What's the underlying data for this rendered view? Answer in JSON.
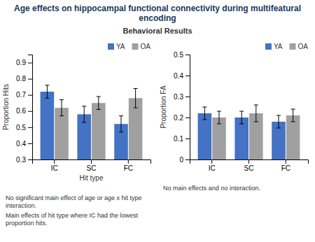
{
  "title": "Age effects on hippocampal functional connectivity during multifeatural encoding",
  "subtitle": "Behavioral Results",
  "chart_data": [
    {
      "type": "bar",
      "categories": [
        "IC",
        "SC",
        "FC"
      ],
      "series": [
        {
          "name": "YA",
          "color": "#4472c4",
          "values": [
            0.72,
            0.58,
            0.52
          ],
          "errors": [
            0.04,
            0.05,
            0.05
          ]
        },
        {
          "name": "OA",
          "color": "#a0a0a0",
          "values": [
            0.62,
            0.65,
            0.68
          ],
          "errors": [
            0.05,
            0.04,
            0.06
          ]
        }
      ],
      "xlabel": "Hit type",
      "ylabel": "Proportion Hits",
      "ylim": [
        0.3,
        0.95
      ],
      "yticks": [
        0.3,
        0.4,
        0.5,
        0.6,
        0.7,
        0.8,
        0.9
      ],
      "legend": "upper right",
      "annotations": [
        "No significant main effect of age or age x hit type interaction.",
        "Main effects of hit type where IC had the lowest proportion hits."
      ]
    },
    {
      "type": "bar",
      "categories": [
        "IC",
        "SC",
        "FC"
      ],
      "series": [
        {
          "name": "YA",
          "color": "#4472c4",
          "values": [
            0.22,
            0.2,
            0.18
          ],
          "errors": [
            0.03,
            0.03,
            0.03
          ]
        },
        {
          "name": "OA",
          "color": "#a0a0a0",
          "values": [
            0.2,
            0.22,
            0.21
          ],
          "errors": [
            0.03,
            0.04,
            0.03
          ]
        }
      ],
      "ylabel": "Proportion FA",
      "ylim": [
        0.0,
        0.5
      ],
      "yticks": [
        0.0,
        0.1,
        0.2,
        0.3,
        0.4,
        0.5
      ],
      "legend": "upper right",
      "annotations": [
        "No main effects and no interaction."
      ]
    }
  ]
}
